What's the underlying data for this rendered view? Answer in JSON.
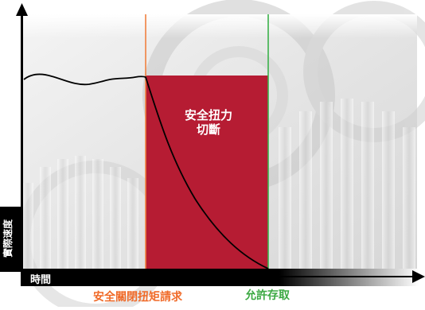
{
  "diagram": {
    "axes": {
      "y_label": "實際速度",
      "x_label": "時間"
    },
    "zone_label_line1": "安全扭力",
    "zone_label_line2": "切斷",
    "marker_labels": {
      "sto_request": "安全關閉扭矩請求",
      "access_allowed": "允許存取"
    },
    "colors": {
      "zone_fill": "#b61c33",
      "sto_line": "#f08040",
      "sto_text": "#f06a28",
      "access_line": "#3bb14a",
      "access_text": "#3ca943",
      "axis": "#000000",
      "speed_curve": "#000000"
    }
  }
}
